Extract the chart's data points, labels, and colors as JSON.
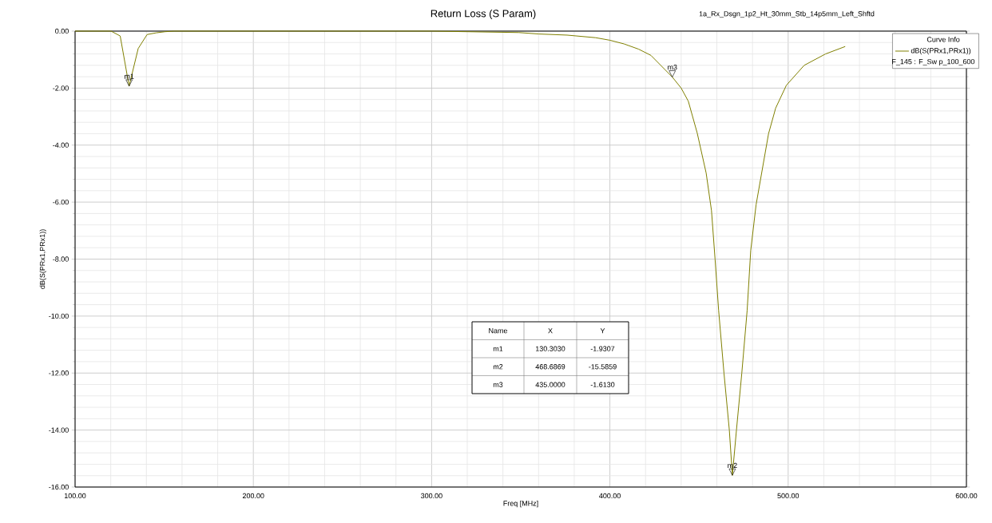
{
  "chart_data": {
    "type": "line",
    "title": "Return Loss (S Param)",
    "subtitle": "1a_Rx_Dsgn_1p2_Ht_30mm_Stb_14p5mm_Left_Shftd",
    "xlabel": "Freq [MHz]",
    "ylabel": "dB(S(PRx1,PRx1))",
    "legend_title": "Curve Info",
    "x": [
      100,
      116,
      120.2,
      125.3,
      130.3,
      135.4,
      140.4,
      145.5,
      150.5,
      155.6,
      200,
      300,
      320,
      349,
      360,
      376,
      392,
      400,
      408,
      416,
      423,
      435,
      440,
      444,
      449,
      454,
      457,
      459,
      461,
      464,
      467,
      468.7,
      471,
      474,
      477,
      479,
      482,
      489,
      493,
      499,
      509,
      521,
      532
    ],
    "series": [
      {
        "name": "dB(S(PRx1,PRx1))",
        "color": "#808000",
        "values": [
          0,
          0,
          0,
          -0.17,
          -1.93,
          -0.61,
          -0.12,
          -0.06,
          -0.02,
          0,
          0,
          0,
          -0.02,
          -0.05,
          -0.1,
          -0.14,
          -0.23,
          -0.32,
          -0.45,
          -0.63,
          -0.85,
          -1.61,
          -2.0,
          -2.46,
          -3.58,
          -4.98,
          -6.3,
          -8.0,
          -9.8,
          -12.0,
          -14.0,
          -15.59,
          -14.0,
          -12.0,
          -9.8,
          -7.7,
          -6.1,
          -3.6,
          -2.7,
          -1.9,
          -1.2,
          -0.8,
          -0.54
        ]
      }
    ],
    "xlim": [
      100,
      600
    ],
    "ylim": [
      -16,
      0
    ],
    "xticks": [
      {
        "value": 100,
        "label": "100.00"
      },
      {
        "value": 200,
        "label": "200.00"
      },
      {
        "value": 300,
        "label": "300.00"
      },
      {
        "value": 400,
        "label": "400.00"
      },
      {
        "value": 500,
        "label": "500.00"
      },
      {
        "value": 600,
        "label": "600.00"
      }
    ],
    "yticks": [
      {
        "value": -16,
        "label": "-16.00"
      },
      {
        "value": -14,
        "label": "-14.00"
      },
      {
        "value": -12,
        "label": "-12.00"
      },
      {
        "value": -10,
        "label": "-10.00"
      },
      {
        "value": -8,
        "label": "-8.00"
      },
      {
        "value": -6,
        "label": "-6.00"
      },
      {
        "value": -4,
        "label": "-4.00"
      },
      {
        "value": -2,
        "label": "-2.00"
      },
      {
        "value": 0,
        "label": "0.00"
      }
    ],
    "grid": true,
    "legend": "top right",
    "line_style": "solid",
    "annotations": [
      {
        "text": "m1",
        "x": 130.303,
        "y": -1.9307
      },
      {
        "text": "m2",
        "x": 468.6869,
        "y": -15.5859
      },
      {
        "text": "m3",
        "x": 435.0,
        "y": -1.613
      },
      "F_145 : F_Sw p_100_600",
      "Name",
      "X",
      "Y",
      "m1",
      "130.3030",
      "-1.9307",
      "m2",
      "468.6869",
      "-15.5859",
      "m3",
      "435.0000",
      "-1.6130"
    ]
  }
}
